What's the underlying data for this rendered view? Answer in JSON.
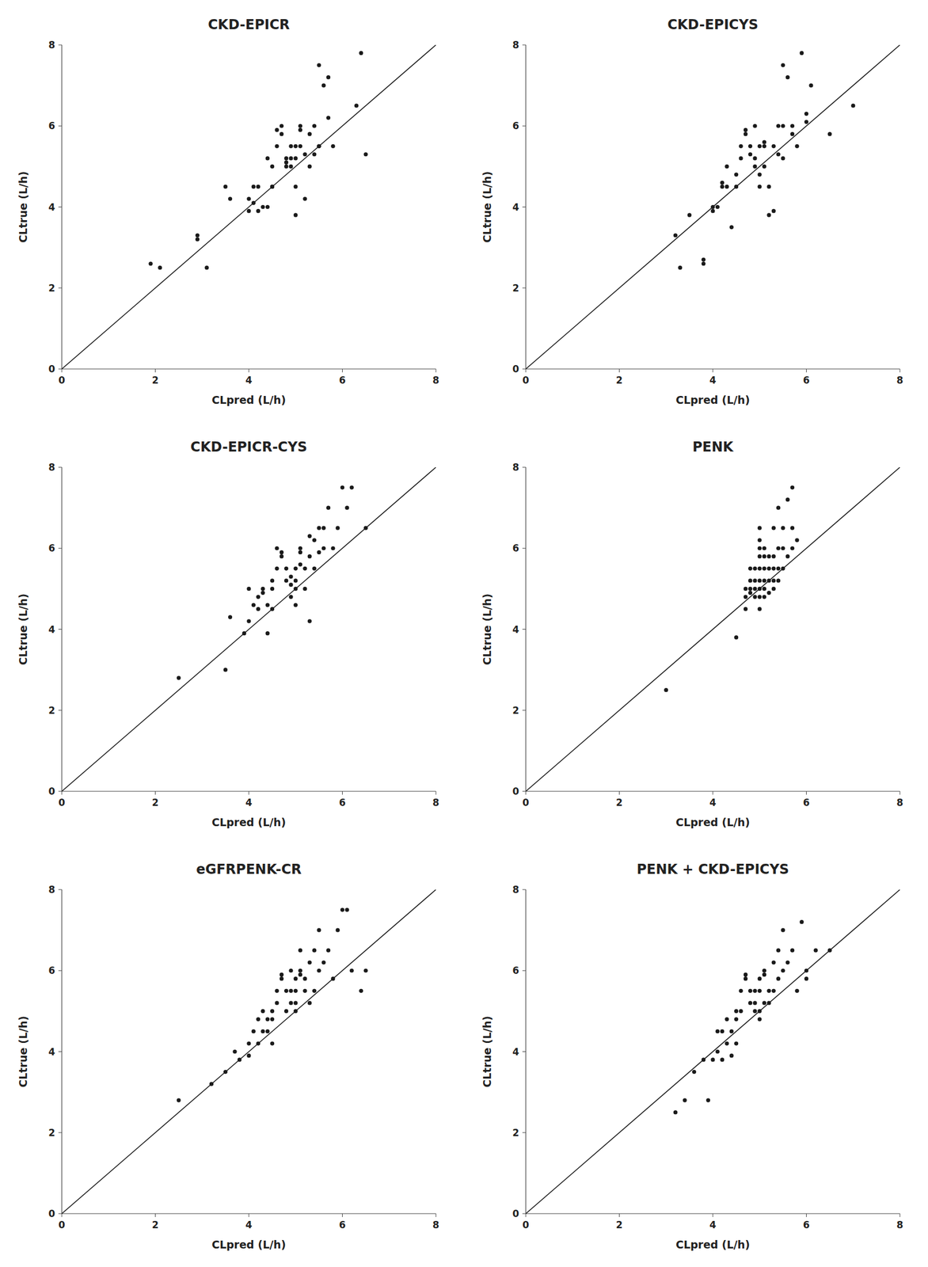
{
  "chart_data": [
    {
      "type": "scatter",
      "title": "CKD-EPICR",
      "xlabel": "CLpred (L/h)",
      "ylabel": "CLtrue (L/h)",
      "xlim": [
        0,
        8
      ],
      "ylim": [
        0,
        8
      ],
      "xticks": [
        0,
        2,
        4,
        6,
        8
      ],
      "yticks": [
        0,
        2,
        4,
        6,
        8
      ],
      "series": [
        {
          "type": "scatter",
          "color": "#1a1a1a",
          "x": [
            1.9,
            2.1,
            2.9,
            2.9,
            3.1,
            3.5,
            3.6,
            4.0,
            4.0,
            4.1,
            4.1,
            4.2,
            4.2,
            4.3,
            4.4,
            4.4,
            4.5,
            4.5,
            4.5,
            4.6,
            4.6,
            4.7,
            4.7,
            4.8,
            4.8,
            4.8,
            4.9,
            4.9,
            4.9,
            5.0,
            5.0,
            5.0,
            5.0,
            5.1,
            5.1,
            5.1,
            5.2,
            5.2,
            5.3,
            5.3,
            5.4,
            5.4,
            5.5,
            5.5,
            5.5,
            5.6,
            5.7,
            5.7,
            5.8,
            6.3,
            6.4,
            6.5
          ],
          "values": [
            2.6,
            2.5,
            3.2,
            3.3,
            2.5,
            4.5,
            4.2,
            3.9,
            4.2,
            4.1,
            4.5,
            3.9,
            4.5,
            4.0,
            5.2,
            4.0,
            4.5,
            5.0,
            4.5,
            5.5,
            5.9,
            5.8,
            6.0,
            5.2,
            5.0,
            5.1,
            5.0,
            5.2,
            5.5,
            5.2,
            5.5,
            4.5,
            3.8,
            6.0,
            5.9,
            5.5,
            4.2,
            5.3,
            5.0,
            5.8,
            6.0,
            5.3,
            5.5,
            5.5,
            7.5,
            7.0,
            6.2,
            7.2,
            5.5,
            6.5,
            7.8,
            5.3
          ]
        },
        {
          "type": "line",
          "color": "#1a1a1a",
          "x": [
            0,
            8
          ],
          "values": [
            0,
            8
          ]
        }
      ]
    },
    {
      "type": "scatter",
      "title": "CKD-EPICYS",
      "xlabel": "CLpred (L/h)",
      "ylabel": "CLtrue (L/h)",
      "xlim": [
        0,
        8
      ],
      "ylim": [
        0,
        8
      ],
      "xticks": [
        0,
        2,
        4,
        6,
        8
      ],
      "yticks": [
        0,
        2,
        4,
        6,
        8
      ],
      "series": [
        {
          "type": "scatter",
          "color": "#1a1a1a",
          "x": [
            3.2,
            3.3,
            3.5,
            3.8,
            3.8,
            4.0,
            4.0,
            4.1,
            4.2,
            4.2,
            4.3,
            4.3,
            4.4,
            4.5,
            4.5,
            4.6,
            4.6,
            4.7,
            4.7,
            4.8,
            4.8,
            4.9,
            4.9,
            4.9,
            5.0,
            5.0,
            5.0,
            5.1,
            5.1,
            5.1,
            5.2,
            5.2,
            5.3,
            5.3,
            5.4,
            5.4,
            5.5,
            5.5,
            5.5,
            5.6,
            5.7,
            5.7,
            5.8,
            5.9,
            6.0,
            6.0,
            6.1,
            6.5,
            7.0
          ],
          "values": [
            3.3,
            2.5,
            3.8,
            2.6,
            2.7,
            3.9,
            4.0,
            4.0,
            4.6,
            4.5,
            4.5,
            5.0,
            3.5,
            4.5,
            4.8,
            5.2,
            5.5,
            5.8,
            5.9,
            5.3,
            5.5,
            6.0,
            5.0,
            5.2,
            4.5,
            4.8,
            5.5,
            5.0,
            5.5,
            5.6,
            4.5,
            3.8,
            3.9,
            5.5,
            6.0,
            5.3,
            5.2,
            6.0,
            7.5,
            7.2,
            5.8,
            6.0,
            5.5,
            7.8,
            6.1,
            6.3,
            7.0,
            5.8,
            6.5
          ]
        },
        {
          "type": "line",
          "color": "#1a1a1a",
          "x": [
            0,
            8
          ],
          "values": [
            0,
            8
          ]
        }
      ]
    },
    {
      "type": "scatter",
      "title": "CKD-EPICR-CYS",
      "xlabel": "CLpred (L/h)",
      "ylabel": "CLtrue (L/h)",
      "xlim": [
        0,
        8
      ],
      "ylim": [
        0,
        8
      ],
      "xticks": [
        0,
        2,
        4,
        6,
        8
      ],
      "yticks": [
        0,
        2,
        4,
        6,
        8
      ],
      "series": [
        {
          "type": "scatter",
          "color": "#1a1a1a",
          "x": [
            2.5,
            3.5,
            3.6,
            3.9,
            4.0,
            4.0,
            4.1,
            4.2,
            4.2,
            4.3,
            4.3,
            4.4,
            4.4,
            4.5,
            4.5,
            4.5,
            4.6,
            4.6,
            4.7,
            4.7,
            4.8,
            4.8,
            4.9,
            4.9,
            4.9,
            5.0,
            5.0,
            5.0,
            5.0,
            5.1,
            5.1,
            5.1,
            5.2,
            5.2,
            5.3,
            5.3,
            5.3,
            5.4,
            5.4,
            5.5,
            5.5,
            5.6,
            5.6,
            5.7,
            5.8,
            5.9,
            6.0,
            6.1,
            6.2,
            6.5
          ],
          "values": [
            2.8,
            3.0,
            4.3,
            3.9,
            4.2,
            5.0,
            4.6,
            4.5,
            4.8,
            4.9,
            5.0,
            3.9,
            4.6,
            4.5,
            5.0,
            5.2,
            5.5,
            6.0,
            5.9,
            5.8,
            5.2,
            5.5,
            4.8,
            5.1,
            5.3,
            5.2,
            5.0,
            4.6,
            5.5,
            5.9,
            5.6,
            6.0,
            5.0,
            5.5,
            4.2,
            5.8,
            6.3,
            5.5,
            6.2,
            5.9,
            6.5,
            6.0,
            6.5,
            7.0,
            6.0,
            6.5,
            7.5,
            7.0,
            7.5,
            6.5
          ]
        },
        {
          "type": "line",
          "color": "#1a1a1a",
          "x": [
            0,
            8
          ],
          "values": [
            0,
            8
          ]
        }
      ]
    },
    {
      "type": "scatter",
      "title": "PENK",
      "xlabel": "CLpred (L/h)",
      "ylabel": "CLtrue (L/h)",
      "xlim": [
        0,
        8
      ],
      "ylim": [
        0,
        8
      ],
      "xticks": [
        0,
        2,
        4,
        6,
        8
      ],
      "yticks": [
        0,
        2,
        4,
        6,
        8
      ],
      "series": [
        {
          "type": "scatter",
          "color": "#1a1a1a",
          "x": [
            3.0,
            4.5,
            4.7,
            4.7,
            4.7,
            4.8,
            4.8,
            4.8,
            4.8,
            4.9,
            4.9,
            4.9,
            4.9,
            5.0,
            5.0,
            5.0,
            5.0,
            5.0,
            5.0,
            5.0,
            5.0,
            5.0,
            5.1,
            5.1,
            5.1,
            5.1,
            5.1,
            5.1,
            5.2,
            5.2,
            5.2,
            5.2,
            5.3,
            5.3,
            5.3,
            5.3,
            5.3,
            5.4,
            5.4,
            5.4,
            5.4,
            5.5,
            5.5,
            5.5,
            5.6,
            5.6,
            5.7,
            5.7,
            5.7,
            5.8
          ],
          "values": [
            2.5,
            3.8,
            4.5,
            4.8,
            5.0,
            4.9,
            5.0,
            5.2,
            5.5,
            4.8,
            5.0,
            5.2,
            5.5,
            4.5,
            4.8,
            5.0,
            5.2,
            5.5,
            5.8,
            6.0,
            6.2,
            6.5,
            4.8,
            5.0,
            5.2,
            5.5,
            5.8,
            6.0,
            4.9,
            5.2,
            5.5,
            5.8,
            5.0,
            5.2,
            5.5,
            5.8,
            6.5,
            5.2,
            5.5,
            6.0,
            7.0,
            5.5,
            6.0,
            6.5,
            5.8,
            7.2,
            6.0,
            6.5,
            7.5,
            6.2
          ]
        },
        {
          "type": "line",
          "color": "#1a1a1a",
          "x": [
            0,
            8
          ],
          "values": [
            0,
            8
          ]
        }
      ]
    },
    {
      "type": "scatter",
      "title": "eGFRPENK-CR",
      "xlabel": "CLpred (L/h)",
      "ylabel": "CLtrue (L/h)",
      "xlim": [
        0,
        8
      ],
      "ylim": [
        0,
        8
      ],
      "xticks": [
        0,
        2,
        4,
        6,
        8
      ],
      "yticks": [
        0,
        2,
        4,
        6,
        8
      ],
      "series": [
        {
          "type": "scatter",
          "color": "#1a1a1a",
          "x": [
            2.5,
            3.2,
            3.5,
            3.7,
            3.8,
            4.0,
            4.0,
            4.1,
            4.2,
            4.2,
            4.3,
            4.3,
            4.4,
            4.4,
            4.5,
            4.5,
            4.5,
            4.6,
            4.6,
            4.7,
            4.7,
            4.8,
            4.8,
            4.9,
            4.9,
            4.9,
            5.0,
            5.0,
            5.0,
            5.0,
            5.1,
            5.1,
            5.1,
            5.2,
            5.2,
            5.3,
            5.3,
            5.4,
            5.4,
            5.5,
            5.5,
            5.6,
            5.7,
            5.8,
            5.9,
            6.0,
            6.1,
            6.2,
            6.4,
            6.5
          ],
          "values": [
            2.8,
            3.2,
            3.5,
            4.0,
            3.8,
            3.9,
            4.2,
            4.5,
            4.2,
            4.8,
            4.5,
            5.0,
            4.5,
            4.8,
            4.2,
            4.8,
            5.0,
            5.2,
            5.5,
            5.8,
            5.9,
            5.0,
            5.5,
            5.2,
            5.5,
            6.0,
            5.0,
            5.2,
            5.5,
            5.8,
            5.9,
            6.0,
            6.5,
            5.5,
            5.8,
            5.2,
            6.2,
            5.5,
            6.5,
            6.0,
            7.0,
            6.2,
            6.5,
            5.8,
            7.0,
            7.5,
            7.5,
            6.0,
            5.5,
            6.0
          ]
        },
        {
          "type": "line",
          "color": "#1a1a1a",
          "x": [
            0,
            8
          ],
          "values": [
            0,
            8
          ]
        }
      ]
    },
    {
      "type": "scatter",
      "title": "PENK + CKD-EPICYS",
      "xlabel": "CLpred (L/h)",
      "ylabel": "CLtrue (L/h)",
      "xlim": [
        0,
        8
      ],
      "ylim": [
        0,
        8
      ],
      "xticks": [
        0,
        2,
        4,
        6,
        8
      ],
      "yticks": [
        0,
        2,
        4,
        6,
        8
      ],
      "series": [
        {
          "type": "scatter",
          "color": "#1a1a1a",
          "x": [
            3.2,
            3.4,
            3.6,
            3.8,
            3.9,
            4.0,
            4.1,
            4.1,
            4.2,
            4.2,
            4.3,
            4.3,
            4.4,
            4.4,
            4.5,
            4.5,
            4.5,
            4.6,
            4.6,
            4.7,
            4.7,
            4.8,
            4.8,
            4.9,
            4.9,
            4.9,
            5.0,
            5.0,
            5.0,
            5.0,
            5.1,
            5.1,
            5.1,
            5.2,
            5.2,
            5.3,
            5.3,
            5.4,
            5.4,
            5.5,
            5.5,
            5.6,
            5.7,
            5.8,
            5.9,
            6.0,
            6.0,
            6.2,
            6.5
          ],
          "values": [
            2.5,
            2.8,
            3.5,
            3.8,
            2.8,
            3.8,
            4.0,
            4.5,
            3.8,
            4.5,
            4.2,
            4.8,
            3.9,
            4.5,
            4.8,
            5.0,
            4.2,
            5.0,
            5.5,
            5.8,
            5.9,
            5.2,
            5.5,
            5.0,
            5.2,
            5.5,
            4.8,
            5.0,
            5.5,
            5.8,
            5.9,
            6.0,
            5.2,
            5.2,
            5.5,
            5.5,
            6.2,
            5.8,
            6.5,
            6.0,
            7.0,
            6.2,
            6.5,
            5.5,
            7.2,
            5.8,
            6.0,
            6.5,
            6.5
          ]
        },
        {
          "type": "line",
          "color": "#1a1a1a",
          "x": [
            0,
            8
          ],
          "values": [
            0,
            8
          ]
        }
      ]
    }
  ]
}
